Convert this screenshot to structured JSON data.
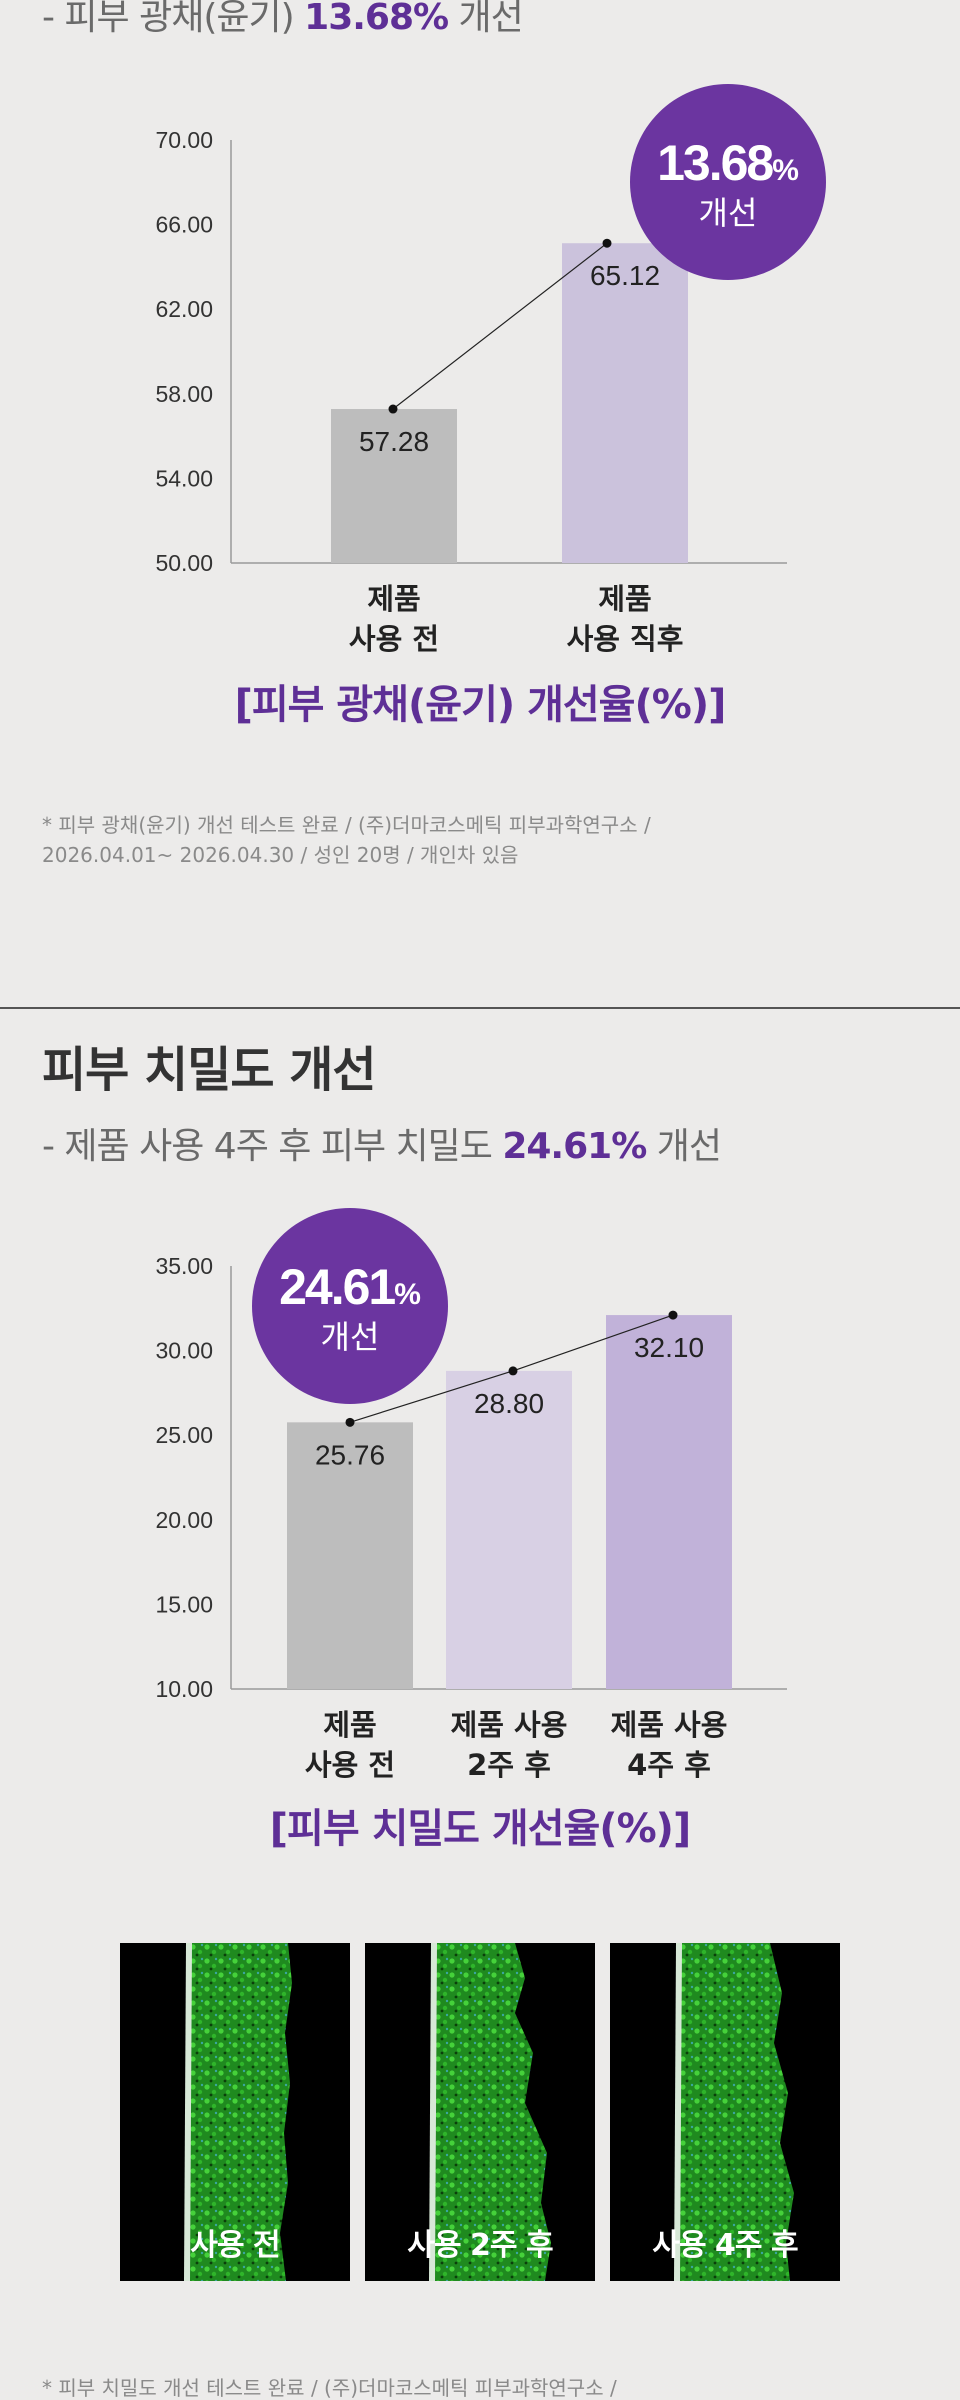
{
  "section1": {
    "subtitle_prefix": "- 피부 광채(윤기) ",
    "subtitle_highlight": "13.68%",
    "subtitle_suffix": " 개선",
    "caption": "[피부 광채(윤기) 개선율(%)]",
    "badge_value": "13.68",
    "badge_unit": "%",
    "badge_label": "개선",
    "footnote_line1": "* 피부 광채(윤기) 개선 테스트 완료 / (주)더마코스메틱 피부과학연구소 /",
    "footnote_line2": "2026.04.01~ 2026.04.30 / 성인 20명 / 개인차 있음"
  },
  "section2": {
    "title": "피부 치밀도 개선",
    "subtitle_prefix": "- 제품 사용 4주 후 피부 치밀도 ",
    "subtitle_highlight": "24.61%",
    "subtitle_suffix": " 개선",
    "caption": "[피부 치밀도 개선율(%)]",
    "badge_value": "24.61",
    "badge_unit": "%",
    "badge_label": "개선",
    "images": [
      {
        "label": "사용 전"
      },
      {
        "label": "사용 2주 후"
      },
      {
        "label": "사용 4주 후"
      }
    ],
    "footnote_line1": "* 피부 치밀도 개선 테스트 완료 / (주)더마코스메틱 피부과학연구소 /"
  },
  "colors": {
    "accent": "#5e2f96",
    "badge": "#6b35a0",
    "bar_gray": "#bdbdbd",
    "bar_lavender_light": "#d8d0e4",
    "bar_lavender": "#cbc2dc",
    "bar_lavender_dark": "#c1b2d9"
  },
  "chart_data": [
    {
      "type": "bar",
      "categories": [
        "제품\n사용 전",
        "제품\n사용 직후"
      ],
      "values": [
        57.28,
        65.12
      ],
      "value_labels": [
        "57.28",
        "65.12"
      ],
      "yticks": [
        "70.00",
        "66.00",
        "62.00",
        "58.00",
        "54.00",
        "50.00"
      ],
      "ylim": [
        50,
        70
      ],
      "grid": false,
      "title": "[피부 광채(윤기) 개선율(%)]"
    },
    {
      "type": "bar",
      "categories": [
        "제품\n사용 전",
        "제품 사용\n2주 후",
        "제품 사용\n4주 후"
      ],
      "values": [
        25.76,
        28.8,
        32.1
      ],
      "value_labels": [
        "25.76",
        "28.80",
        "32.10"
      ],
      "yticks": [
        "35.00",
        "30.00",
        "25.00",
        "20.00",
        "15.00",
        "10.00"
      ],
      "ylim": [
        10,
        35
      ],
      "grid": false,
      "title": "[피부 치밀도 개선율(%)]"
    }
  ]
}
